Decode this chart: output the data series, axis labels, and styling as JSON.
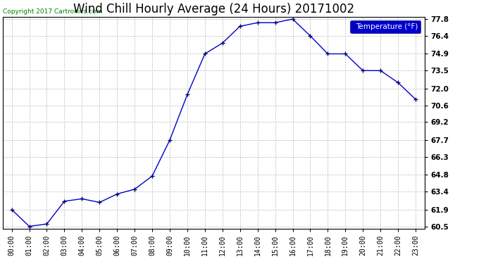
{
  "title": "Wind Chill Hourly Average (24 Hours) 20171002",
  "copyright_text": "Copyright 2017 Cartronics.com",
  "legend_label": "Temperature (°F)",
  "x_labels": [
    "00:00",
    "01:00",
    "02:00",
    "03:00",
    "04:00",
    "05:00",
    "06:00",
    "07:00",
    "08:00",
    "09:00",
    "10:00",
    "11:00",
    "12:00",
    "13:00",
    "14:00",
    "15:00",
    "16:00",
    "17:00",
    "18:00",
    "19:00",
    "20:00",
    "21:00",
    "22:00",
    "23:00"
  ],
  "y_values": [
    61.9,
    60.5,
    60.7,
    62.6,
    62.8,
    62.5,
    63.2,
    63.6,
    64.7,
    67.7,
    71.5,
    74.9,
    75.8,
    77.2,
    77.5,
    77.5,
    77.8,
    76.4,
    74.9,
    74.9,
    73.5,
    73.5,
    72.5,
    71.1
  ],
  "ylim_min": 60.5,
  "ylim_max": 77.8,
  "yticks": [
    60.5,
    61.9,
    63.4,
    64.8,
    66.3,
    67.7,
    69.2,
    70.6,
    72.0,
    73.5,
    74.9,
    76.4,
    77.8
  ],
  "line_color": "#0000cc",
  "marker_color": "#000066",
  "bg_color": "#ffffff",
  "plot_bg_color": "#ffffff",
  "grid_color": "#bbbbbb",
  "title_fontsize": 12,
  "copyright_color": "#008000",
  "legend_bg_color": "#0000cc",
  "legend_text_color": "#ffffff",
  "legend_fontsize": 7.5,
  "tick_fontsize": 7,
  "ytick_fontsize": 7.5
}
